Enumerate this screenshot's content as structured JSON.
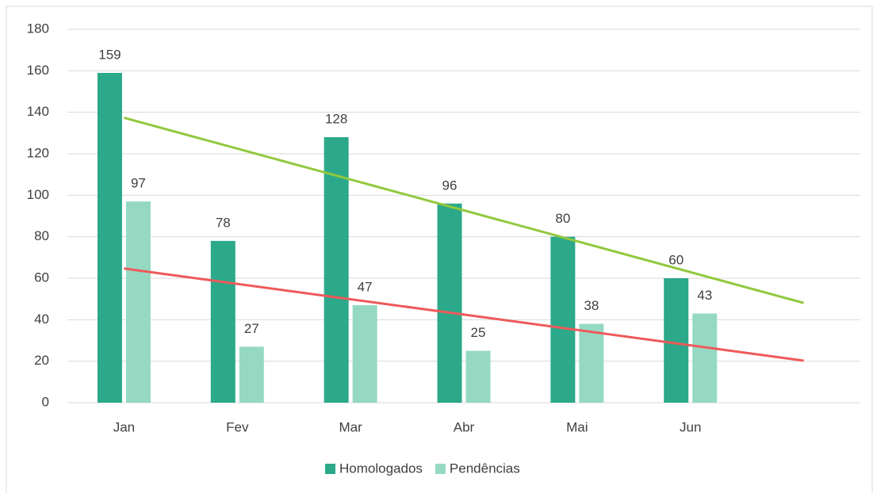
{
  "chart_data": {
    "type": "bar",
    "categories": [
      "Jan",
      "Fev",
      "Mar",
      "Abr",
      "Mai",
      "Jun",
      null
    ],
    "series": [
      {
        "name": "Homologados",
        "color": "#2ba98a",
        "trendline_color": "#92c83e",
        "values": [
          159,
          78,
          128,
          96,
          80,
          60,
          null
        ]
      },
      {
        "name": "Pendências",
        "color": "#95d9c3",
        "trendline_color": "#ee5a5a",
        "values": [
          97,
          27,
          47,
          25,
          38,
          43,
          null
        ]
      }
    ],
    "ylim": [
      0,
      180
    ],
    "yticks": [
      0,
      20,
      40,
      60,
      80,
      100,
      120,
      140,
      160,
      180
    ],
    "grid": true,
    "trendline": "linear",
    "legend": "bottom",
    "data_labels": true
  }
}
